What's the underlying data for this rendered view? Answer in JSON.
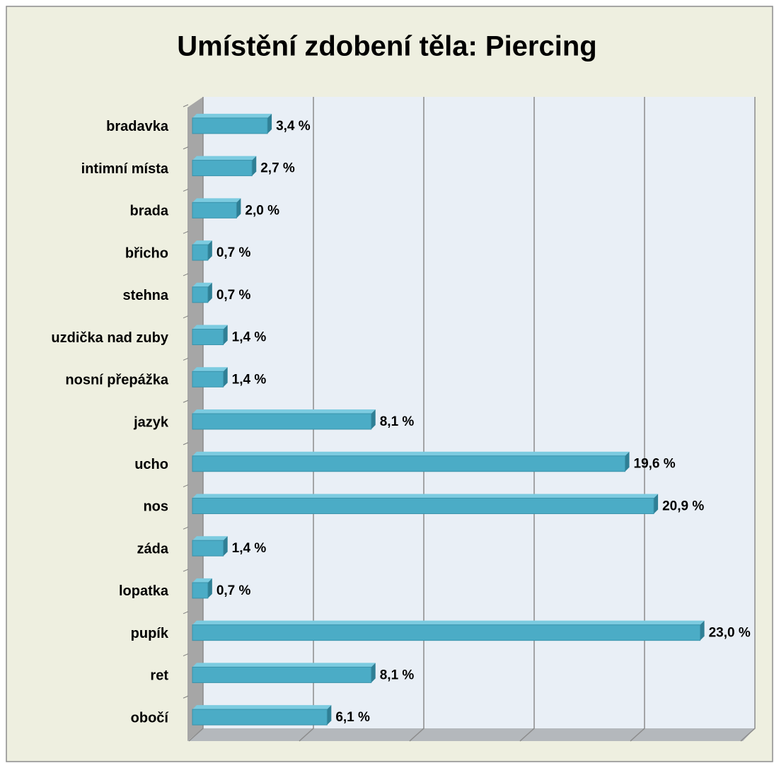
{
  "chart_data": {
    "type": "bar",
    "orientation": "horizontal",
    "title": "Umístění zdobení těla: Piercing",
    "categories": [
      "bradavka",
      "intimní místa",
      "brada",
      "břicho",
      "stehna",
      "uzdička nad zuby",
      "nosní přepážka",
      "jazyk",
      "ucho",
      "nos",
      "záda",
      "lopatka",
      "pupík",
      "ret",
      "obočí"
    ],
    "values": [
      3.4,
      2.7,
      2.0,
      0.7,
      0.7,
      1.4,
      1.4,
      8.1,
      19.6,
      20.9,
      1.4,
      0.7,
      23.0,
      8.1,
      6.1
    ],
    "value_labels": [
      "3,4 %",
      "2,7 %",
      "2,0 %",
      "0,7 %",
      "0,7 %",
      "1,4 %",
      "1,4 %",
      "8,1 %",
      "19,6 %",
      "20,9 %",
      "1,4 %",
      "0,7 %",
      "23,0 %",
      "8,1 %",
      "6,1 %"
    ],
    "color": "#4bacc6",
    "xlim": [
      0,
      25
    ],
    "xticks": [
      0,
      5,
      10,
      15,
      20,
      25
    ],
    "grid": true
  }
}
